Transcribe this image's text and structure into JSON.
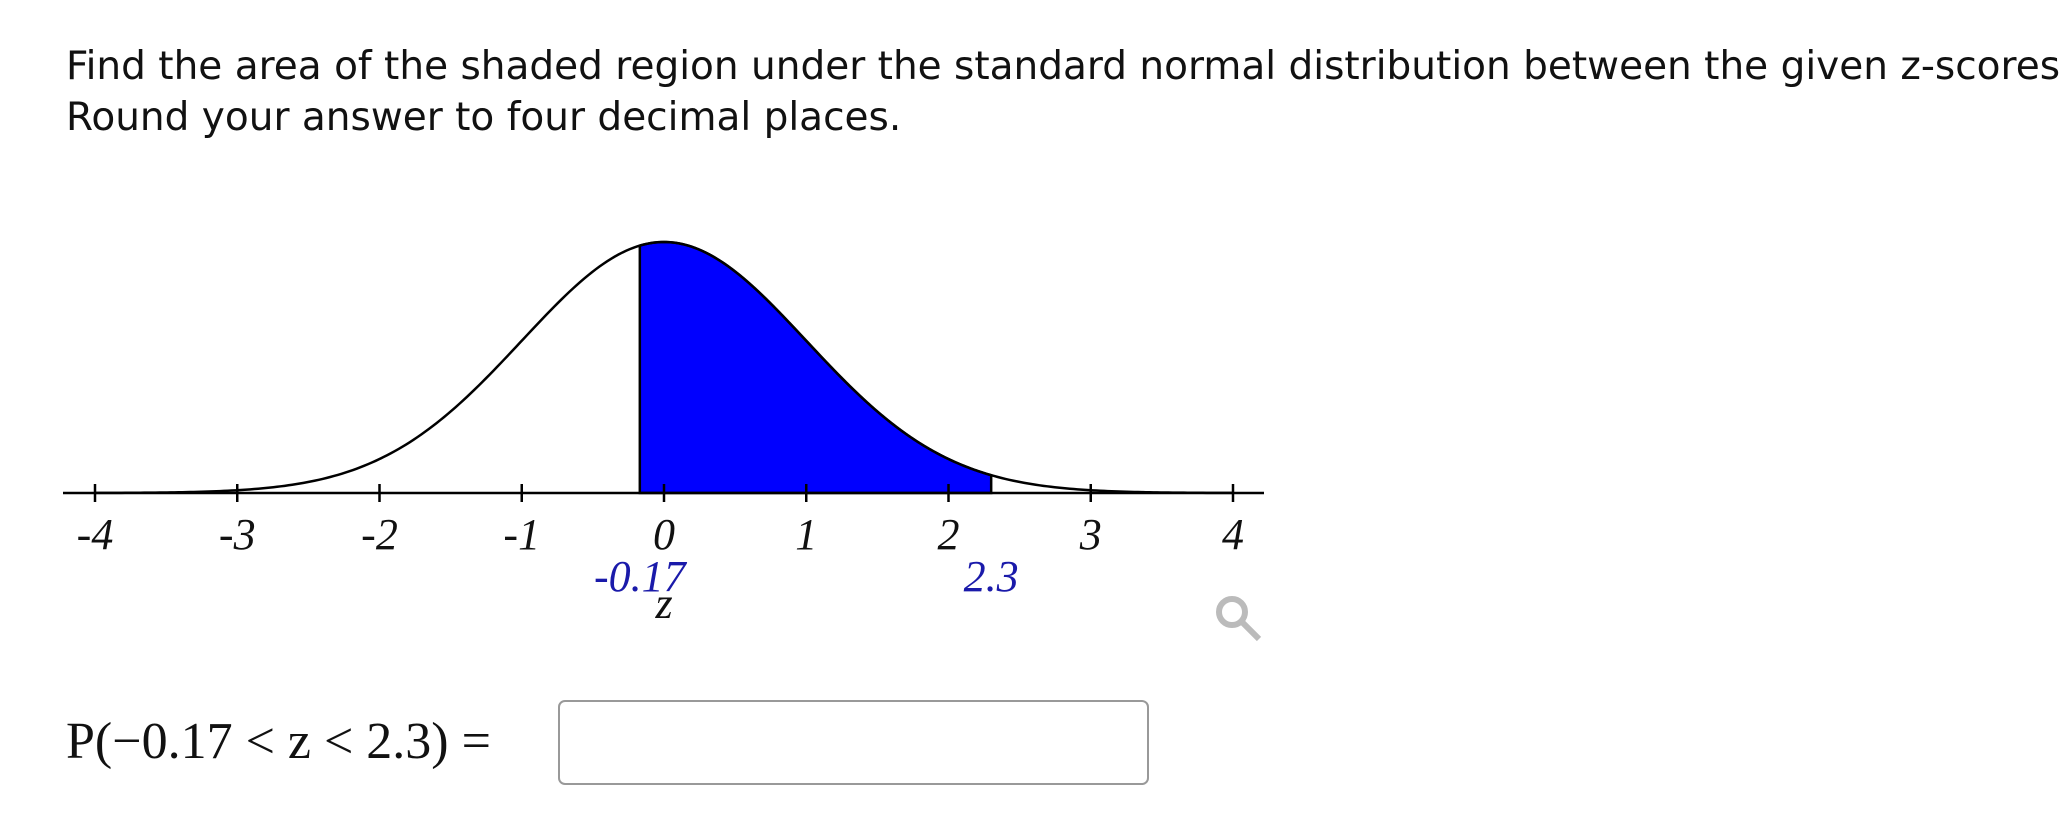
{
  "question": [
    "Find the area of the shaded region under the standard normal distribution between the given z-scores.",
    "Round your answer to four decimal places."
  ],
  "chart_data": {
    "type": "normal-area",
    "xlim": [
      -4,
      4
    ],
    "xticks": [
      -4,
      -3,
      -2,
      -1,
      0,
      1,
      2,
      3,
      4
    ],
    "shade": [
      -0.17,
      2.3
    ],
    "shade_color": "#0000ff",
    "label_color": "#1a1aaa",
    "x_label": "z"
  },
  "equation": "P(−0.17 < z < 2.3) ="
}
